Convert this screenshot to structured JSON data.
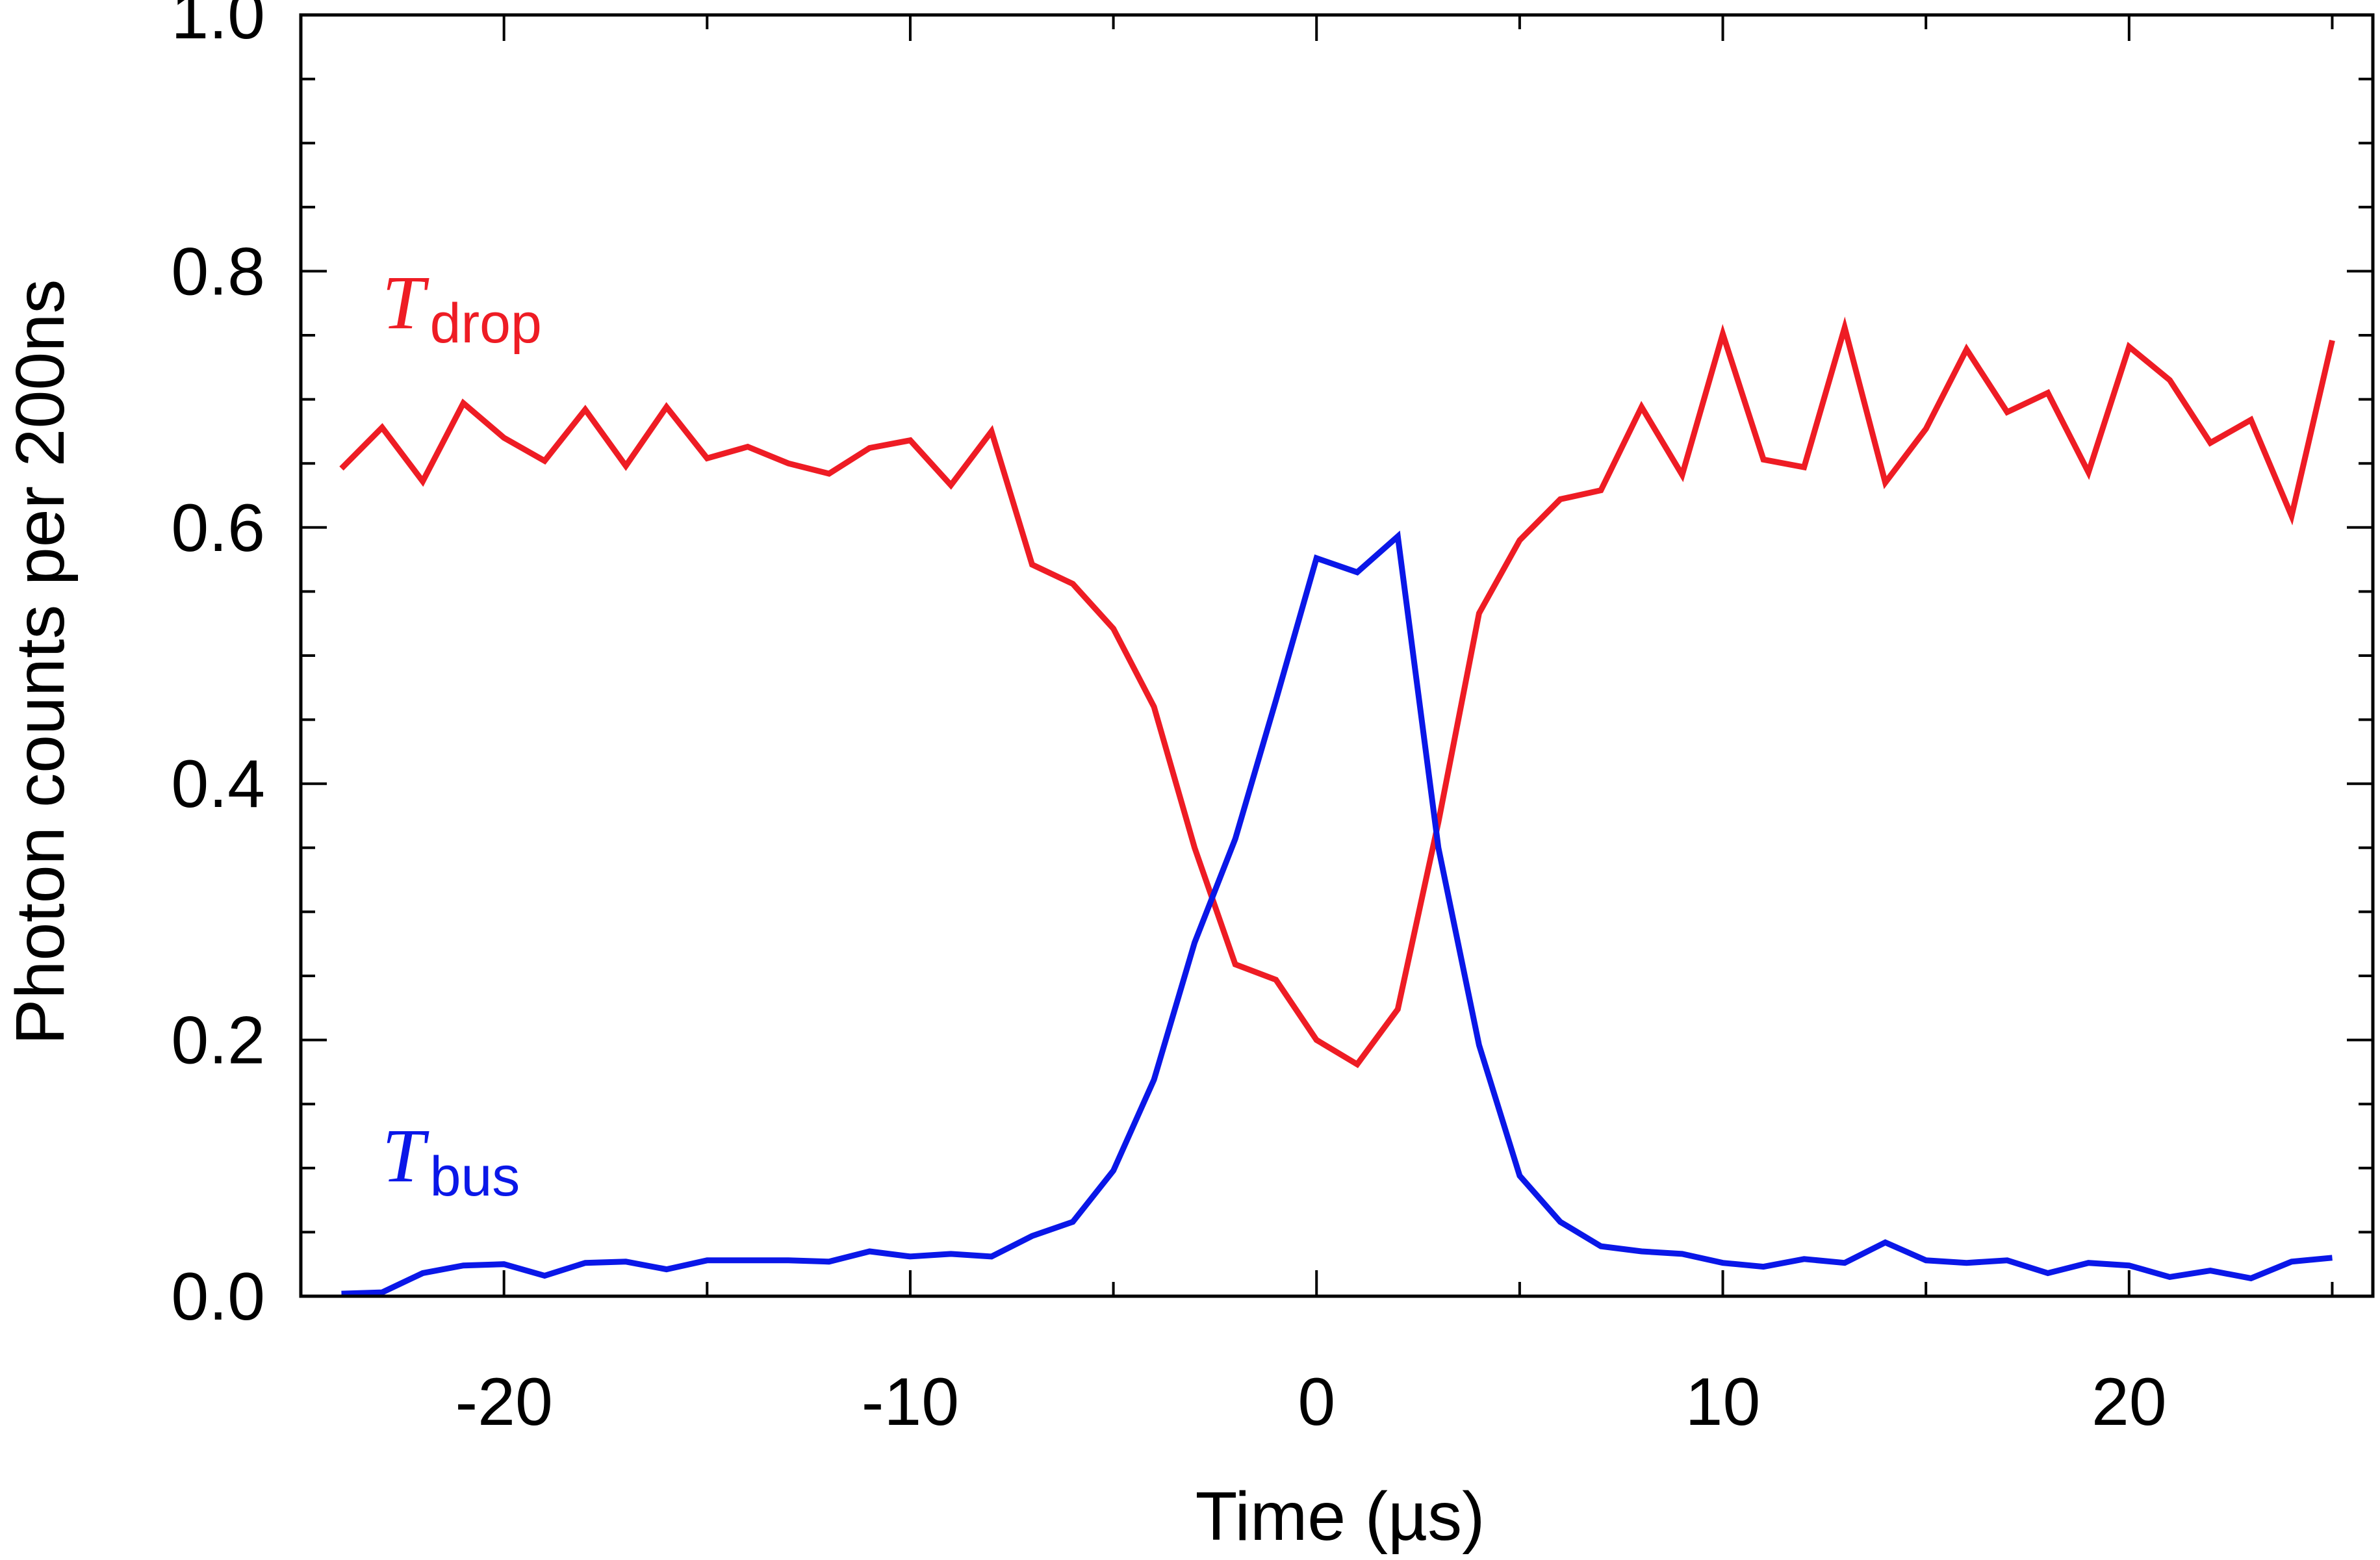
{
  "chart_data": {
    "type": "line",
    "title": "",
    "xlabel": "Time (µs)",
    "ylabel": "Photon counts per 200ns",
    "xlim": [
      -25,
      26
    ],
    "ylim": [
      0,
      1.0
    ],
    "x_ticks": [
      -20,
      -10,
      0,
      10,
      20
    ],
    "x_tick_labels": [
      "-20",
      "-10",
      "0",
      "10",
      "20"
    ],
    "y_ticks": [
      0,
      0.2,
      0.4,
      0.6,
      0.8,
      1.0
    ],
    "y_tick_labels": [
      "0.0",
      "0.2",
      "0.4",
      "0.6",
      "0.8",
      "1.0"
    ],
    "grid": false,
    "x": [
      -24,
      -23,
      -22,
      -21,
      -20,
      -19,
      -18,
      -17,
      -16,
      -15,
      -14,
      -13,
      -12,
      -11,
      -10,
      -9,
      -8,
      -7,
      -6,
      -5,
      -4,
      -3,
      -2,
      -1,
      0,
      1,
      2,
      3,
      4,
      5,
      6,
      7,
      8,
      9,
      10,
      11,
      12,
      13,
      14,
      15,
      16,
      17,
      18,
      19,
      20,
      21,
      22,
      23,
      24,
      25
    ],
    "series": [
      {
        "name": "T_drop",
        "label_main": "T",
        "label_sub": "drop",
        "color": "#ee1c24",
        "values": [
          0.646,
          0.678,
          0.636,
          0.697,
          0.67,
          0.652,
          0.692,
          0.648,
          0.694,
          0.654,
          0.663,
          0.65,
          0.642,
          0.662,
          0.668,
          0.633,
          0.675,
          0.571,
          0.556,
          0.521,
          0.46,
          0.35,
          0.259,
          0.247,
          0.2,
          0.181,
          0.224,
          0.37,
          0.533,
          0.59,
          0.622,
          0.629,
          0.694,
          0.641,
          0.751,
          0.653,
          0.647,
          0.756,
          0.635,
          0.677,
          0.739,
          0.69,
          0.705,
          0.643,
          0.741,
          0.715,
          0.666,
          0.684,
          0.609,
          0.746
        ]
      },
      {
        "name": "T_bus",
        "label_main": "T",
        "label_sub": "bus",
        "color": "#0a17e8",
        "values": [
          0.002,
          0.003,
          0.018,
          0.024,
          0.025,
          0.016,
          0.026,
          0.027,
          0.021,
          0.028,
          0.028,
          0.028,
          0.027,
          0.035,
          0.031,
          0.033,
          0.031,
          0.047,
          0.058,
          0.098,
          0.169,
          0.276,
          0.357,
          0.465,
          0.576,
          0.565,
          0.593,
          0.35,
          0.196,
          0.094,
          0.058,
          0.039,
          0.035,
          0.033,
          0.026,
          0.023,
          0.029,
          0.026,
          0.042,
          0.028,
          0.026,
          0.028,
          0.018,
          0.026,
          0.024,
          0.015,
          0.02,
          0.014,
          0.027,
          0.03
        ]
      }
    ]
  }
}
